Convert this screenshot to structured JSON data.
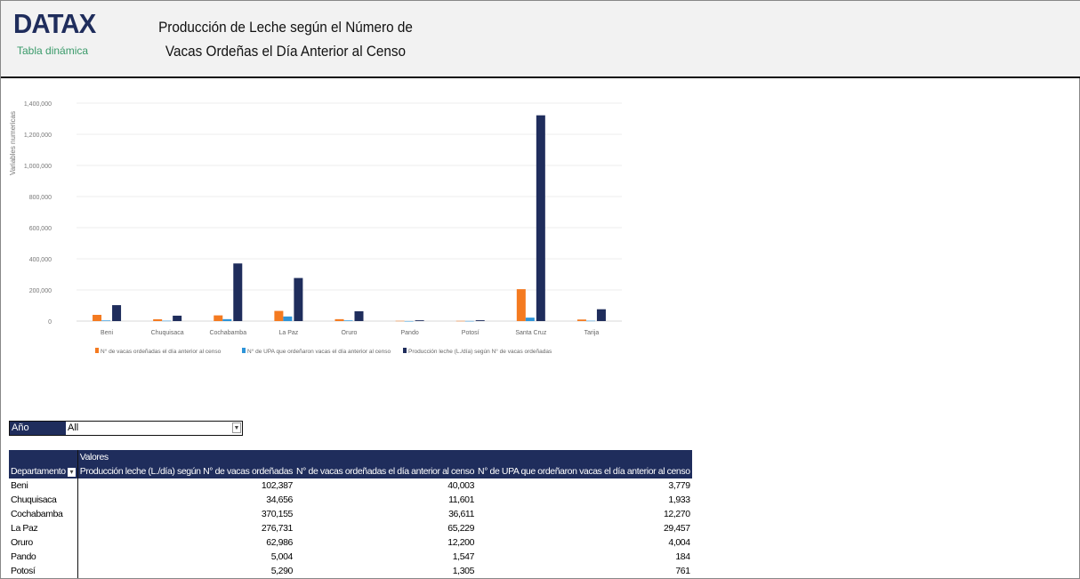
{
  "header": {
    "logo": "DATAX",
    "subtitle": "Tabla dinámica",
    "title_line1": "Producción de Leche según el Número de",
    "title_line2": "Vacas Ordeñas el Día Anterior al Censo"
  },
  "chart_data": {
    "type": "bar",
    "ylabel": "Variables numericas",
    "ylim": [
      0,
      1400000
    ],
    "yticks": [
      "0",
      "200,000",
      "400,000",
      "600,000",
      "800,000",
      "1,000,000",
      "1,200,000",
      "1,400,000"
    ],
    "grid": true,
    "legend_position": "bottom",
    "categories": [
      "Beni",
      "Chuquisaca",
      "Cochabamba",
      "La Paz",
      "Oruro",
      "Pando",
      "Potosí",
      "Santa Cruz",
      "Tarija"
    ],
    "series": [
      {
        "name": "N° de vacas ordeñadas el día anterior al censo",
        "color": "#f47a20",
        "values": [
          40003,
          11601,
          36611,
          65229,
          12200,
          1547,
          1305,
          205000,
          10000
        ]
      },
      {
        "name": "N° de UPA que ordeñaron vacas el día anterior al censo",
        "color": "#2e94d8",
        "values": [
          3779,
          1933,
          12270,
          29457,
          4004,
          184,
          761,
          22000,
          2000
        ]
      },
      {
        "name": "Producción leche (L./día) según N° de vacas ordeñadas",
        "color": "#1f2d5c",
        "values": [
          102387,
          34656,
          370155,
          276731,
          62986,
          5004,
          5290,
          1322000,
          76000
        ]
      }
    ]
  },
  "filter": {
    "label": "Año",
    "value": "All"
  },
  "table": {
    "valores_label": "Valores",
    "headers": [
      "Departamento",
      "Producción leche (L./día) según N° de vacas ordeñadas",
      "N° de vacas ordeñadas el día anterior al censo",
      "N° de UPA que ordeñaron vacas el día anterior al censo"
    ],
    "rows": [
      [
        "Beni",
        "102,387",
        "40,003",
        "3,779"
      ],
      [
        "Chuquisaca",
        "34,656",
        "11,601",
        "1,933"
      ],
      [
        "Cochabamba",
        "370,155",
        "36,611",
        "12,270"
      ],
      [
        "La Paz",
        "276,731",
        "65,229",
        "29,457"
      ],
      [
        "Oruro",
        "62,986",
        "12,200",
        "4,004"
      ],
      [
        "Pando",
        "5,004",
        "1,547",
        "184"
      ],
      [
        "Potosí",
        "5,290",
        "1,305",
        "761"
      ]
    ]
  }
}
